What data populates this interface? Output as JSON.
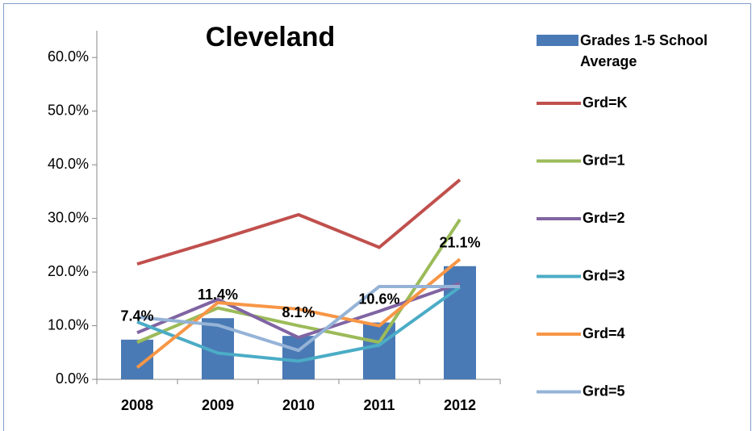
{
  "chart_data": {
    "type": "bar-line",
    "title": "Cleveland",
    "categories": [
      "2008",
      "2009",
      "2010",
      "2011",
      "2012"
    ],
    "ylim": [
      0,
      65
    ],
    "yticks": [
      {
        "value": 0,
        "label": "0.0%"
      },
      {
        "value": 10,
        "label": "10.0%"
      },
      {
        "value": 20,
        "label": "20.0%"
      },
      {
        "value": 30,
        "label": "30.0%"
      },
      {
        "value": 40,
        "label": "40.0%"
      },
      {
        "value": 50,
        "label": "50.0%"
      },
      {
        "value": 60,
        "label": "60.0%"
      }
    ],
    "legend": "right",
    "series": [
      {
        "name": "Grades 1-5 School Average",
        "type": "bar",
        "color": "#4a7ab5",
        "values": [
          7.4,
          11.4,
          8.1,
          10.6,
          21.1
        ],
        "value_labels": [
          "7.4%",
          "11.4%",
          "8.1%",
          "10.6%",
          "21.1%"
        ]
      },
      {
        "name": "Grd=K",
        "type": "line",
        "color": "#c0504d",
        "values": [
          21.5,
          26,
          30.7,
          24.6,
          37.2
        ]
      },
      {
        "name": "Grd=1",
        "type": "line",
        "color": "#9bbb59",
        "values": [
          6.9,
          13.3,
          10,
          6.9,
          29.8
        ]
      },
      {
        "name": "Grd=2",
        "type": "line",
        "color": "#8064a2",
        "values": [
          8.7,
          14.9,
          7.8,
          12.7,
          17.9
        ]
      },
      {
        "name": "Grd=3",
        "type": "line",
        "color": "#4bacc6",
        "values": [
          10.7,
          4.9,
          3.4,
          6.4,
          17.2
        ]
      },
      {
        "name": "Grd=4",
        "type": "line",
        "color": "#f79646",
        "values": [
          2.2,
          14.3,
          13.1,
          10,
          22.4
        ]
      },
      {
        "name": "Grd=5",
        "type": "line",
        "color": "#95b3d7",
        "values": [
          11.6,
          10.1,
          5.4,
          17.3,
          17.3
        ]
      }
    ]
  }
}
